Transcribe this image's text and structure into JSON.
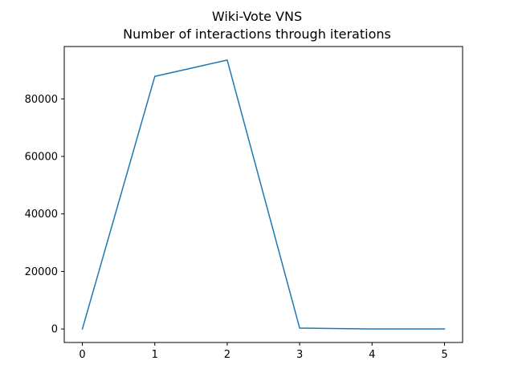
{
  "chart_data": {
    "type": "line",
    "title": [
      "Wiki-Vote VNS",
      "Number of interactions through iterations"
    ],
    "xlabel": "",
    "ylabel": "",
    "x": [
      0,
      1,
      2,
      3,
      4,
      5
    ],
    "series": [
      {
        "values": [
          0,
          87800,
          93500,
          300,
          0,
          0
        ],
        "color": "#1f77b4"
      }
    ],
    "xlim": [
      -0.25,
      5.25
    ],
    "ylim": [
      -4700,
      98200
    ],
    "xticks": [
      0,
      1,
      2,
      3,
      4,
      5
    ],
    "xtick_labels": [
      "0",
      "1",
      "2",
      "3",
      "4",
      "5"
    ],
    "yticks": [
      0,
      20000,
      40000,
      60000,
      80000
    ],
    "ytick_labels": [
      "0",
      "20000",
      "40000",
      "60000",
      "80000"
    ],
    "grid": false,
    "legend": false
  }
}
